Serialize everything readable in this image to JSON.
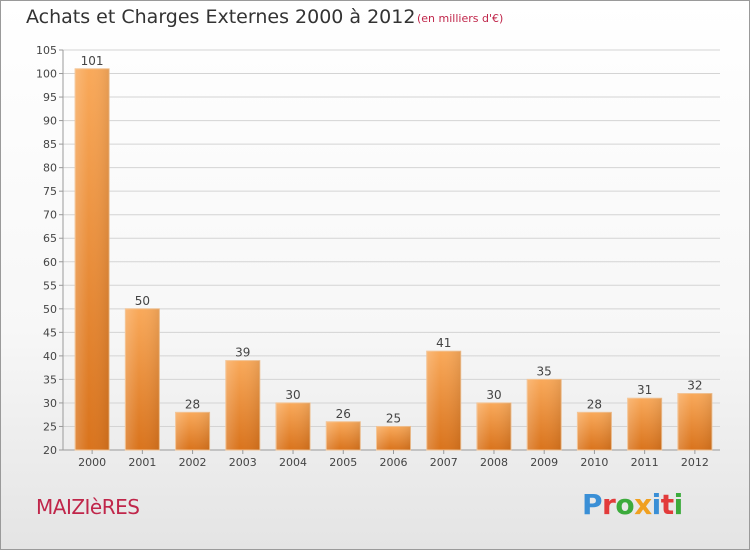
{
  "header": {
    "title": "Achats et Charges Externes 2000 à 2012",
    "unit": "(en milliers d'€)"
  },
  "footer": {
    "commune": "MAIZIèRES",
    "logo_text": "Proxiti"
  },
  "colors": {
    "bar_light": "#f9a95a",
    "bar_dark": "#d9731c",
    "title": "#333333",
    "accent": "#c0264a"
  },
  "chart_data": {
    "type": "bar",
    "title": "Achats et Charges Externes 2000 à 2012",
    "subtitle": "(en milliers d'€)",
    "categories": [
      "2000",
      "2001",
      "2002",
      "2003",
      "2004",
      "2005",
      "2006",
      "2007",
      "2008",
      "2009",
      "2010",
      "2011",
      "2012"
    ],
    "values": [
      101,
      50,
      28,
      39,
      30,
      26,
      25,
      41,
      30,
      35,
      28,
      31,
      32
    ],
    "ylim": [
      20,
      105
    ],
    "yticks": [
      20,
      25,
      30,
      35,
      40,
      45,
      50,
      55,
      60,
      65,
      70,
      75,
      80,
      85,
      90,
      95,
      100,
      105
    ],
    "grid": true,
    "legend": "none"
  }
}
